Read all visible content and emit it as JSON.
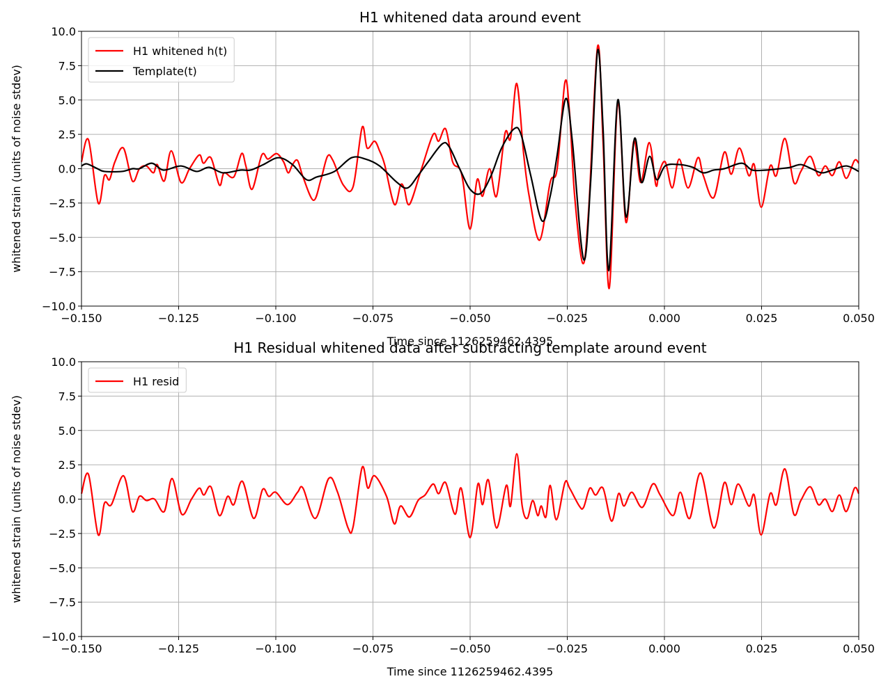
{
  "chart_data": [
    {
      "type": "line",
      "title": "H1 whitened data around event",
      "xlabel": "Time since 1126259462.4395",
      "ylabel": "whitened strain (units of noise stdev)",
      "xlim": [
        -0.15,
        0.05
      ],
      "ylim": [
        -10,
        10
      ],
      "grid": true,
      "legend": "upper left",
      "xticks": [
        {
          "value": -0.15,
          "label": "−0.150"
        },
        {
          "value": -0.125,
          "label": "−0.125"
        },
        {
          "value": -0.1,
          "label": "−0.100"
        },
        {
          "value": -0.075,
          "label": "−0.075"
        },
        {
          "value": -0.05,
          "label": "−0.050"
        },
        {
          "value": -0.025,
          "label": "−0.025"
        },
        {
          "value": 0,
          "label": "0.000"
        },
        {
          "value": 0.025,
          "label": "0.025"
        },
        {
          "value": 0.05,
          "label": "0.050"
        }
      ],
      "yticks": [
        {
          "value": 10,
          "label": "10.0"
        },
        7.5,
        {
          "value": 5,
          "label": "5.0"
        },
        2.5,
        {
          "value": 0,
          "label": "0.0"
        },
        {
          "value": -2.5,
          "label": "−2.5"
        },
        {
          "value": -5,
          "label": "−5.0"
        },
        {
          "value": -7.5,
          "label": "−7.5"
        },
        {
          "value": -10,
          "label": "−10.0"
        }
      ],
      "series": [
        {
          "name": "H1 whitened h(t)",
          "color": "#ff0000",
          "x": [
            -0.15,
            -0.1482,
            -0.1457,
            -0.1441,
            -0.1428,
            -0.1414,
            -0.1392,
            -0.1369,
            -0.1351,
            -0.1333,
            -0.1315,
            -0.1305,
            -0.1287,
            -0.1269,
            -0.1244,
            -0.1222,
            -0.1197,
            -0.1186,
            -0.1167,
            -0.1145,
            -0.1133,
            -0.1108,
            -0.1088,
            -0.1077,
            -0.1061,
            -0.1036,
            -0.102,
            -0.0998,
            -0.098,
            -0.0968,
            -0.0957,
            -0.0944,
            -0.093,
            -0.0903,
            -0.0884,
            -0.0867,
            -0.0853,
            -0.0826,
            -0.0801,
            -0.0778,
            -0.0765,
            -0.0746,
            -0.0733,
            -0.072,
            -0.0695,
            -0.0679,
            -0.067,
            -0.0656,
            -0.0625,
            -0.0595,
            -0.0581,
            -0.0563,
            -0.0545,
            -0.0527,
            -0.0518,
            -0.05,
            -0.0482,
            -0.0468,
            -0.045,
            -0.0432,
            -0.041,
            -0.0396,
            -0.038,
            -0.0362,
            -0.0348,
            -0.0321,
            -0.0294,
            -0.0276,
            -0.0256,
            -0.0244,
            -0.0231,
            -0.021,
            -0.0195,
            -0.0172,
            -0.0158,
            -0.0142,
            -0.012,
            -0.0099,
            -0.0079,
            -0.0061,
            -0.0039,
            -0.0022,
            -0.0014,
            0.0002,
            0.002,
            0.0038,
            0.0061,
            0.0086,
            0.01,
            0.0127,
            0.0154,
            0.0172,
            0.0193,
            0.0217,
            0.0231,
            0.0249,
            0.0272,
            0.0288,
            0.031,
            0.0333,
            0.0351,
            0.0375,
            0.0396,
            0.0414,
            0.0432,
            0.045,
            0.0468,
            0.0489,
            0.05
          ],
          "values": [
            0.5,
            2.1,
            -2.5,
            -0.5,
            -0.8,
            0.5,
            1.5,
            -0.9,
            0,
            0.2,
            -0.3,
            0.3,
            -0.9,
            1.3,
            -1.0,
            0,
            1.0,
            0.4,
            0.8,
            -1.2,
            -0.3,
            -0.6,
            1.1,
            0.2,
            -1.5,
            1.0,
            0.7,
            1.1,
            0.5,
            -0.3,
            0.3,
            0.6,
            -0.6,
            -2.3,
            -0.8,
            0.9,
            0.6,
            -1.2,
            -1.3,
            3.0,
            1.5,
            2.0,
            1.3,
            0.3,
            -2.6,
            -1.2,
            -1.4,
            -2.6,
            0,
            2.5,
            2.0,
            2.9,
            0.5,
            0,
            -1.0,
            -4.4,
            -0.8,
            -2.0,
            0,
            -2.0,
            2.6,
            2.2,
            6.2,
            1.0,
            -2.0,
            -5.2,
            -1.0,
            0,
            6.3,
            4.0,
            -2.0,
            -6.9,
            -3.0,
            8.9,
            2.0,
            -8.7,
            4.8,
            -3.9,
            2.0,
            -1.0,
            1.9,
            -1.2,
            -0.3,
            0.5,
            -1.4,
            0.7,
            -1.4,
            0.8,
            -0.5,
            -2.1,
            1.2,
            -0.4,
            1.5,
            -0.5,
            0.3,
            -2.8,
            0.2,
            -0.5,
            2.2,
            -1.0,
            -0.2,
            0.9,
            -0.5,
            0.2,
            -0.5,
            0.5,
            -0.7,
            0.6,
            0.4
          ]
        },
        {
          "name": "Template(t)",
          "color": "#000000",
          "x": [
            -0.15,
            -0.1486,
            -0.1459,
            -0.1441,
            -0.1396,
            -0.1369,
            -0.1351,
            -0.1319,
            -0.1289,
            -0.1244,
            -0.1204,
            -0.1172,
            -0.1136,
            -0.1091,
            -0.1065,
            -0.1032,
            -0.0993,
            -0.0957,
            -0.0921,
            -0.0894,
            -0.0849,
            -0.0805,
            -0.0769,
            -0.0733,
            -0.0688,
            -0.0661,
            -0.0634,
            -0.0608,
            -0.0572,
            -0.0554,
            -0.0527,
            -0.05,
            -0.0473,
            -0.0446,
            -0.0419,
            -0.0387,
            -0.0369,
            -0.0344,
            -0.0315,
            -0.0294,
            -0.0276,
            -0.0254,
            -0.0237,
            -0.0208,
            -0.019,
            -0.0172,
            -0.0158,
            -0.0143,
            -0.012,
            -0.0099,
            -0.0077,
            -0.0059,
            -0.0038,
            -0.002,
            0.0002,
            0.0038,
            0.0073,
            0.01,
            0.0127,
            0.0154,
            0.0199,
            0.0226,
            0.0262,
            0.0297,
            0.0324,
            0.0351,
            0.0378,
            0.0405,
            0.0432,
            0.0468,
            0.05
          ],
          "values": [
            0.2,
            0.35,
            0,
            -0.2,
            -0.2,
            0,
            0,
            0.4,
            -0.1,
            0.2,
            -0.2,
            0.1,
            -0.3,
            -0.1,
            -0.1,
            0.3,
            0.8,
            0.3,
            -0.8,
            -0.6,
            -0.2,
            0.8,
            0.7,
            0.2,
            -1.0,
            -1.4,
            -0.5,
            0.5,
            1.8,
            1.6,
            0,
            -1.5,
            -1.8,
            -0.5,
            1.5,
            2.9,
            2.5,
            -0.5,
            -3.8,
            -2.0,
            1.0,
            5.1,
            2.0,
            -6.6,
            -1.0,
            8.6,
            3.0,
            -7.4,
            5.0,
            -3.5,
            2.2,
            -1.0,
            0.9,
            -0.8,
            0.2,
            0.3,
            0.1,
            -0.3,
            -0.1,
            0,
            0.4,
            -0.1,
            -0.1,
            0,
            0.1,
            0.3,
            0,
            -0.3,
            -0.1,
            0.2,
            -0.2
          ]
        }
      ]
    },
    {
      "type": "line",
      "title": "H1 Residual whitened data after subtracting template around event",
      "xlabel": "Time since 1126259462.4395",
      "ylabel": "whitened strain (units of noise stdev)",
      "xlim": [
        -0.15,
        0.05
      ],
      "ylim": [
        -10,
        10
      ],
      "grid": true,
      "legend": "upper left",
      "xticks": [
        {
          "value": -0.15,
          "label": "−0.150"
        },
        {
          "value": -0.125,
          "label": "−0.125"
        },
        {
          "value": -0.1,
          "label": "−0.100"
        },
        {
          "value": -0.075,
          "label": "−0.075"
        },
        {
          "value": -0.05,
          "label": "−0.050"
        },
        {
          "value": -0.025,
          "label": "−0.025"
        },
        {
          "value": 0,
          "label": "0.000"
        },
        {
          "value": 0.025,
          "label": "0.025"
        },
        {
          "value": 0.05,
          "label": "0.050"
        }
      ],
      "yticks": [
        {
          "value": 10,
          "label": "10.0"
        },
        7.5,
        {
          "value": 5,
          "label": "5.0"
        },
        2.5,
        {
          "value": 0,
          "label": "0.0"
        },
        {
          "value": -2.5,
          "label": "−2.5"
        },
        {
          "value": -5,
          "label": "−5.0"
        },
        {
          "value": -7.5,
          "label": "−7.5"
        },
        {
          "value": -10,
          "label": "−10.0"
        }
      ],
      "series": [
        {
          "name": "H1 resid",
          "color": "#ff0000",
          "x": [
            -0.15,
            -0.1482,
            -0.1457,
            -0.1441,
            -0.1423,
            -0.1392,
            -0.1369,
            -0.1351,
            -0.1333,
            -0.1312,
            -0.1287,
            -0.1267,
            -0.1242,
            -0.1217,
            -0.1197,
            -0.1185,
            -0.1167,
            -0.1145,
            -0.1124,
            -0.1108,
            -0.1086,
            -0.1057,
            -0.1034,
            -0.1018,
            -0.1,
            -0.097,
            -0.0944,
            -0.093,
            -0.0898,
            -0.0864,
            -0.0841,
            -0.0814,
            -0.0801,
            -0.0778,
            -0.0763,
            -0.0746,
            -0.0715,
            -0.0695,
            -0.0679,
            -0.0656,
            -0.0634,
            -0.0616,
            -0.0595,
            -0.0581,
            -0.0563,
            -0.0539,
            -0.0523,
            -0.05,
            -0.048,
            -0.0468,
            -0.0453,
            -0.0432,
            -0.0407,
            -0.0396,
            -0.038,
            -0.0366,
            -0.0353,
            -0.0339,
            -0.0326,
            -0.0317,
            -0.0305,
            -0.0294,
            -0.0278,
            -0.0256,
            -0.0244,
            -0.0219,
            -0.0208,
            -0.0192,
            -0.0177,
            -0.0158,
            -0.0136,
            -0.0118,
            -0.0104,
            -0.0084,
            -0.0057,
            -0.003,
            -0.0011,
            0.0022,
            0.0041,
            0.0065,
            0.0093,
            0.0127,
            0.0154,
            0.0172,
            0.019,
            0.0217,
            0.0231,
            0.0249,
            0.0272,
            0.0288,
            0.031,
            0.0333,
            0.0351,
            0.0375,
            0.0396,
            0.0414,
            0.0432,
            0.045,
            0.0468,
            0.0489,
            0.05
          ],
          "values": [
            0.4,
            1.8,
            -2.6,
            -0.3,
            -0.4,
            1.7,
            -0.9,
            0.2,
            -0.1,
            0,
            -0.9,
            1.5,
            -1.1,
            0,
            0.8,
            0.3,
            0.9,
            -1.2,
            0.2,
            -0.4,
            1.3,
            -1.4,
            0.7,
            0.2,
            0.5,
            -0.4,
            0.5,
            0.8,
            -1.4,
            1.5,
            0.5,
            -2.1,
            -2.0,
            2.3,
            0.8,
            1.7,
            0.2,
            -1.8,
            -0.5,
            -1.3,
            -0.1,
            0.3,
            1.1,
            0.4,
            1.2,
            -1.1,
            0.8,
            -2.8,
            1.1,
            -0.4,
            1.4,
            -2.1,
            1.0,
            -0.5,
            3.3,
            -0.5,
            -1.4,
            -0.1,
            -1.2,
            -0.5,
            -1.3,
            1.0,
            -1.5,
            1.2,
            0.8,
            -0.5,
            -0.6,
            0.8,
            0.3,
            0.8,
            -1.6,
            0.4,
            -0.5,
            0.5,
            -0.6,
            1.1,
            0.3,
            -1.2,
            0.5,
            -1.4,
            1.9,
            -2.1,
            1.2,
            -0.4,
            1.1,
            -0.5,
            0.3,
            -2.6,
            0.4,
            -0.4,
            2.2,
            -1.1,
            -0.1,
            0.9,
            -0.4,
            0,
            -0.9,
            0.3,
            -0.9,
            0.8,
            0.4
          ]
        }
      ]
    }
  ]
}
